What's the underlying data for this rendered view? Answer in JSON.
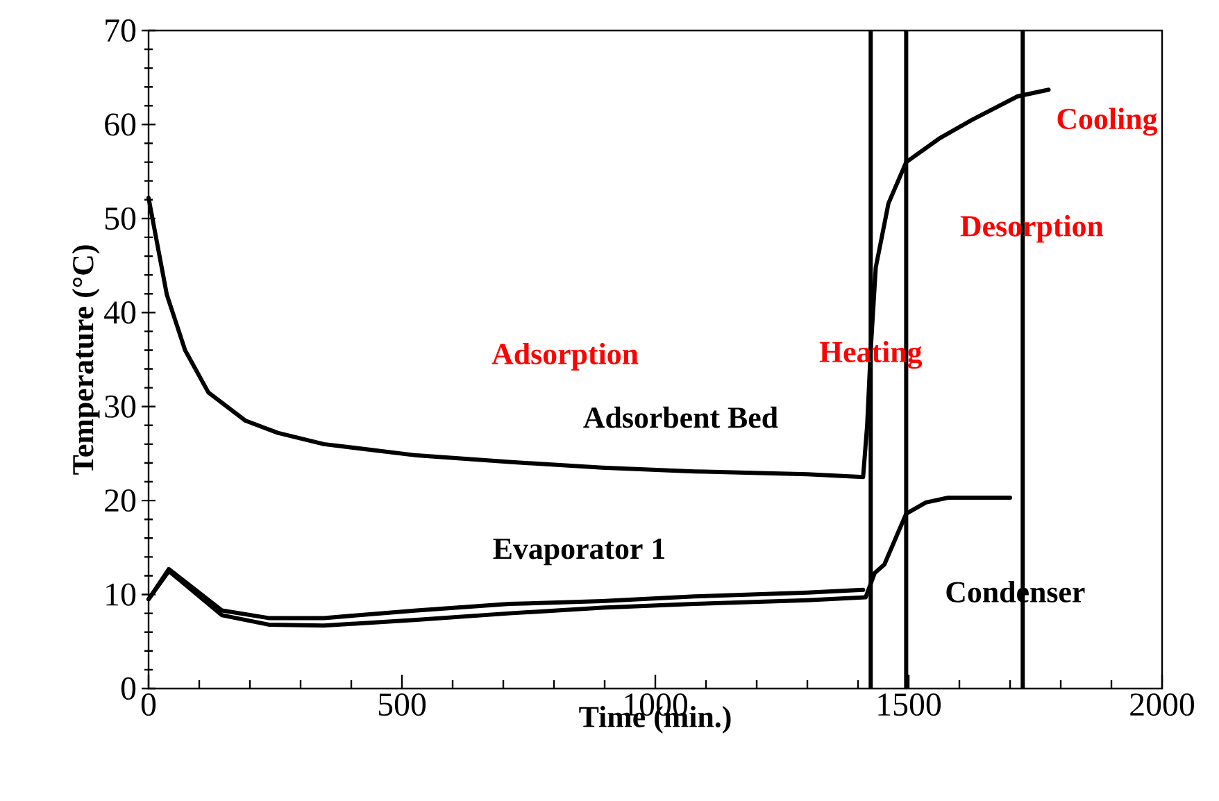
{
  "chart_data": {
    "type": "line",
    "xlabel": "Time (min.)",
    "ylabel": "Temperature (°C)",
    "xlim": [
      0,
      2000
    ],
    "ylim": [
      0,
      70
    ],
    "xticks": [
      0,
      500,
      1000,
      1500,
      2000
    ],
    "yticks": [
      0,
      10,
      20,
      30,
      40,
      50,
      60,
      70
    ],
    "marker": "none",
    "line_style": "solid",
    "series": [
      {
        "name": "Adsorbent Bed",
        "color": "#000000",
        "x": [
          0,
          36,
          72,
          118,
          191,
          255,
          346,
          529,
          712,
          895,
          1077,
          1300,
          1410,
          1418,
          1425,
          1435,
          1460,
          1495,
          1560,
          1625,
          1715,
          1776
        ],
        "values": [
          52.2,
          41.9,
          36,
          31.5,
          28.5,
          27.2,
          26,
          24.8,
          24.1,
          23.5,
          23.1,
          22.8,
          22.5,
          28,
          36,
          44.8,
          51.6,
          56,
          58.5,
          60.5,
          63,
          63.7
        ]
      },
      {
        "name": "Evaporator 1",
        "color": "#000000",
        "x": [
          0,
          40,
          145,
          237,
          346,
          529,
          712,
          895,
          1077,
          1300,
          1410
        ],
        "values": [
          9.5,
          12.7,
          8.3,
          7.5,
          7.5,
          8.3,
          9.0,
          9.3,
          9.8,
          10.2,
          10.5
        ]
      },
      {
        "name": "Condenser",
        "color": "#000000",
        "x": [
          0,
          40,
          145,
          237,
          346,
          529,
          712,
          895,
          1077,
          1300,
          1415,
          1433,
          1452,
          1495,
          1534,
          1578,
          1700
        ],
        "values": [
          9.5,
          12.5,
          7.8,
          6.8,
          6.7,
          7.3,
          8.0,
          8.6,
          9.0,
          9.4,
          9.7,
          12.3,
          13.2,
          18.6,
          19.8,
          20.3,
          20.3
        ]
      }
    ],
    "ref_lines": [
      {
        "axis": "x",
        "value": 1425,
        "color": "#000000"
      },
      {
        "axis": "x",
        "value": 1495,
        "color": "#000000"
      },
      {
        "axis": "x",
        "value": 1725,
        "color": "#000000"
      }
    ],
    "annotations": [
      "Adsorption",
      "Heating",
      "Desorption",
      "Cooling"
    ]
  }
}
